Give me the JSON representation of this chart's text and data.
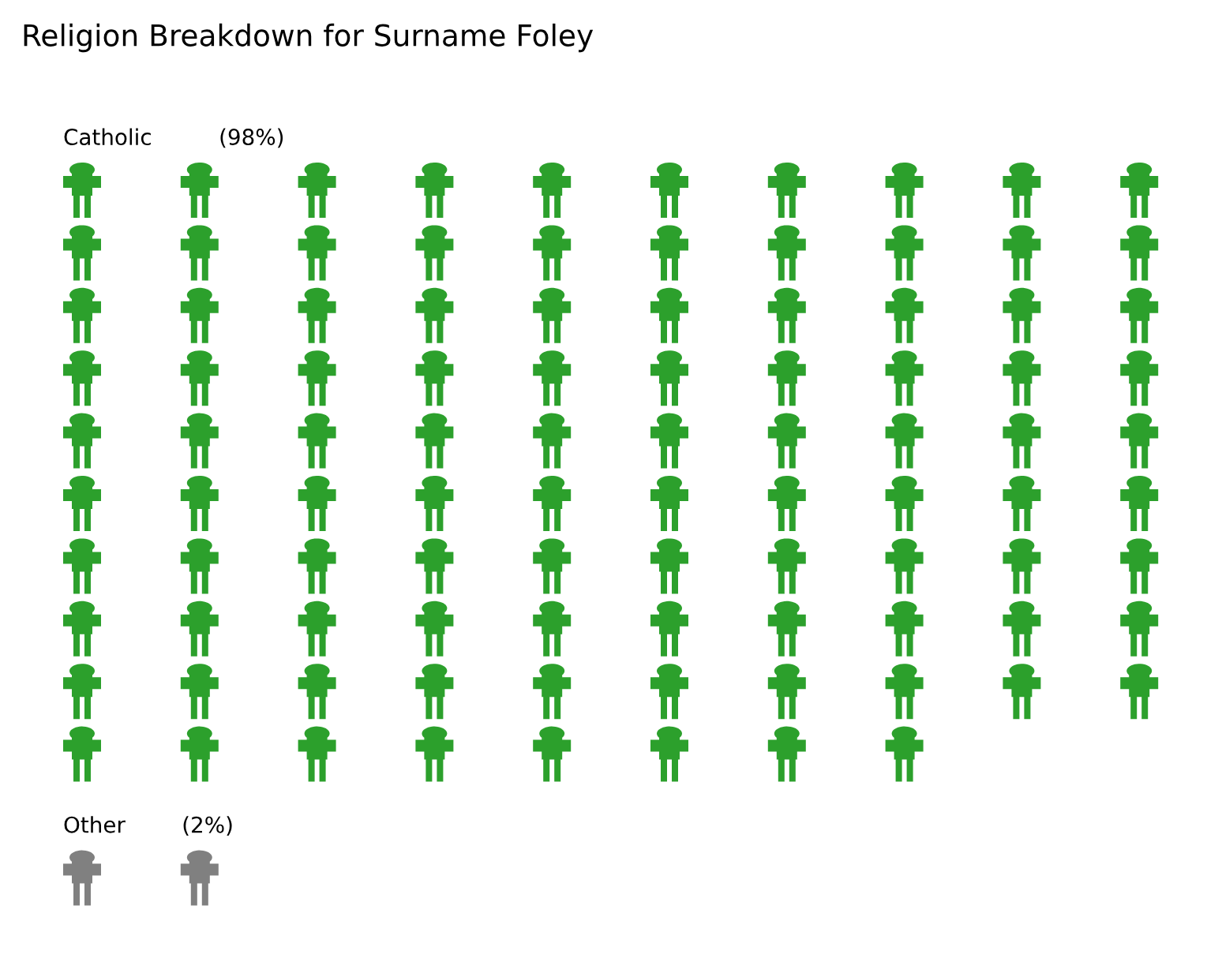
{
  "chart_data": {
    "type": "other",
    "title": "Religion Breakdown for Surname Foley",
    "categories": [
      "Catholic",
      "Other"
    ],
    "value_labels": [
      "(98%)",
      "(2%)"
    ],
    "values": [
      98,
      2
    ],
    "colors": [
      "#2ca02c",
      "#808080"
    ]
  }
}
